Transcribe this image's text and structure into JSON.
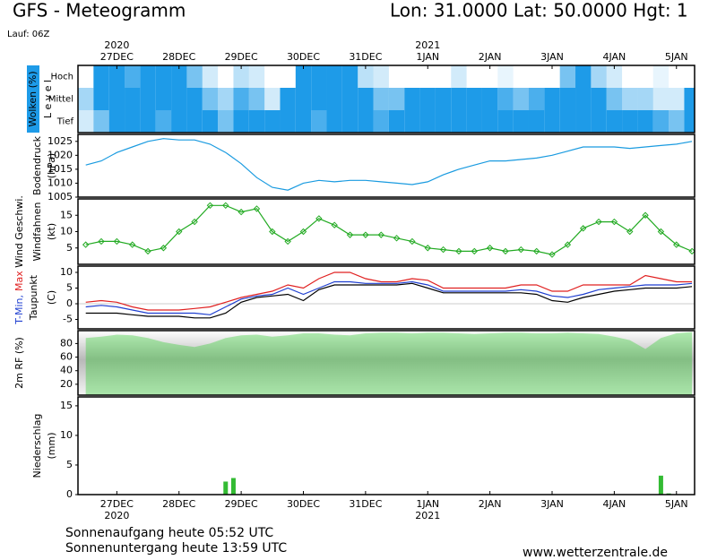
{
  "header": {
    "title": "GFS - Meteogramm",
    "location": "Lon: 31.0000 Lat: 50.0000 Hgt: 1",
    "run": "Lauf: 06Z"
  },
  "footer": {
    "sunrise": "Sonnenaufgang heute 05:52 UTC",
    "sunset": "Sonnenuntergang heute 13:59 UTC",
    "site": "www.wetterzentrale.de"
  },
  "chart_data": [
    {
      "type": "cloud",
      "ylabel": "Wolken (%)",
      "level_label": "L e v e l",
      "color": "#1e9be8",
      "xlim": [
        -15,
        223
      ],
      "xticks": [
        {
          "value": 0,
          "label": "27DEC"
        },
        {
          "value": 24,
          "label": "28DEC"
        },
        {
          "value": 48,
          "label": "29DEC"
        },
        {
          "value": 72,
          "label": "30DEC"
        },
        {
          "value": 96,
          "label": "31DEC"
        },
        {
          "value": 120,
          "label": "1JAN"
        },
        {
          "value": 144,
          "label": "2JAN"
        },
        {
          "value": 168,
          "label": "3JAN"
        },
        {
          "value": 192,
          "label": "4JAN"
        },
        {
          "value": 216,
          "label": "5JAN"
        }
      ],
      "year_labels": [
        {
          "value": 0,
          "label": "2020"
        },
        {
          "value": 120,
          "label": "2021"
        }
      ],
      "x": [
        -12,
        -6,
        0,
        6,
        12,
        18,
        24,
        30,
        36,
        42,
        48,
        54,
        60,
        66,
        72,
        78,
        84,
        90,
        96,
        102,
        108,
        114,
        120,
        126,
        132,
        138,
        144,
        150,
        156,
        162,
        168,
        174,
        180,
        186,
        192,
        198,
        204,
        210,
        216,
        222
      ],
      "series": [
        {
          "name": "Hoch",
          "values": [
            0,
            100,
            100,
            80,
            100,
            100,
            100,
            60,
            20,
            0,
            30,
            20,
            0,
            0,
            100,
            100,
            100,
            100,
            30,
            20,
            0,
            0,
            0,
            0,
            20,
            0,
            0,
            10,
            0,
            0,
            0,
            60,
            100,
            40,
            20,
            0,
            0,
            10,
            0,
            0
          ]
        },
        {
          "name": "Mittel",
          "values": [
            40,
            100,
            100,
            100,
            100,
            100,
            100,
            100,
            60,
            40,
            80,
            60,
            20,
            100,
            100,
            100,
            100,
            100,
            100,
            60,
            60,
            100,
            100,
            100,
            100,
            100,
            100,
            80,
            60,
            80,
            100,
            100,
            100,
            100,
            60,
            40,
            40,
            20,
            20,
            100
          ]
        },
        {
          "name": "Tief",
          "values": [
            20,
            60,
            100,
            100,
            100,
            80,
            100,
            100,
            100,
            60,
            100,
            100,
            100,
            100,
            100,
            80,
            100,
            100,
            100,
            80,
            100,
            100,
            100,
            100,
            100,
            100,
            100,
            100,
            100,
            100,
            100,
            100,
            100,
            100,
            100,
            100,
            100,
            80,
            60,
            100
          ]
        }
      ]
    },
    {
      "type": "line",
      "ylabel": [
        "Bodendruck",
        "(hPa)"
      ],
      "xlim": [
        -15,
        223
      ],
      "ylim": [
        1005,
        1027.5
      ],
      "yticks": [
        1005,
        1010,
        1015,
        1020,
        1025
      ],
      "x": [
        -12,
        -6,
        0,
        6,
        12,
        18,
        24,
        30,
        36,
        42,
        48,
        54,
        60,
        66,
        72,
        78,
        84,
        90,
        96,
        102,
        108,
        114,
        120,
        126,
        132,
        138,
        144,
        150,
        156,
        162,
        168,
        174,
        180,
        186,
        192,
        198,
        204,
        210,
        216,
        222
      ],
      "series": [
        {
          "color": "#1a9be0",
          "values": [
            1016.5,
            1018,
            1021,
            1023,
            1025,
            1026,
            1025.5,
            1025.5,
            1024,
            1021,
            1017,
            1012,
            1008.5,
            1007.5,
            1010,
            1011,
            1010.5,
            1011,
            1011,
            1010.5,
            1010,
            1009.5,
            1010.5,
            1013,
            1015,
            1016.5,
            1018,
            1018,
            1018.5,
            1019,
            1020,
            1021.5,
            1023,
            1023,
            1023,
            1022.5,
            1023,
            1023.5,
            1024,
            1025
          ]
        }
      ]
    },
    {
      "type": "line",
      "markers": true,
      "ylabel": [
        "Windfahnen",
        "(kt)"
      ],
      "xlim": [
        -15,
        223
      ],
      "ylim": [
        0,
        20
      ],
      "yticks": [
        5,
        10,
        15
      ],
      "x": [
        -12,
        -6,
        0,
        6,
        12,
        18,
        24,
        30,
        36,
        42,
        48,
        54,
        60,
        66,
        72,
        78,
        84,
        90,
        96,
        102,
        108,
        114,
        120,
        126,
        132,
        138,
        144,
        150,
        156,
        162,
        168,
        174,
        180,
        186,
        192,
        198,
        204,
        210,
        216,
        222
      ],
      "series": [
        {
          "name": "Wind Geschwi.",
          "color": "#22aa22",
          "values": [
            6,
            7,
            7,
            6,
            4,
            5,
            10,
            13,
            18,
            18,
            16,
            17,
            10,
            7,
            10,
            14,
            12,
            9,
            9,
            9,
            8,
            7,
            5,
            4.5,
            4,
            4,
            5,
            4,
            4.5,
            4,
            3,
            6,
            11,
            13,
            13,
            10,
            15,
            10,
            6,
            4
          ]
        }
      ]
    },
    {
      "type": "line",
      "ylabel": [
        "(C)"
      ],
      "xlim": [
        -15,
        223
      ],
      "ylim": [
        -8,
        12
      ],
      "yticks": [
        -5,
        0,
        5,
        10
      ],
      "x": [
        -12,
        -6,
        0,
        6,
        12,
        18,
        24,
        30,
        36,
        42,
        48,
        54,
        60,
        66,
        72,
        78,
        84,
        90,
        96,
        102,
        108,
        114,
        120,
        126,
        132,
        138,
        144,
        150,
        156,
        162,
        168,
        174,
        180,
        186,
        192,
        198,
        204,
        210,
        216,
        222
      ],
      "series": [
        {
          "name": "T-Min,",
          "color": "#1f3fd0",
          "values": [
            -1,
            -0.5,
            -1,
            -2,
            -3,
            -3,
            -3,
            -3,
            -3.5,
            -1,
            1.5,
            2.5,
            3,
            5,
            3,
            5,
            7,
            7,
            6.5,
            6.5,
            6.5,
            7,
            6,
            4,
            4,
            4,
            4,
            4,
            4.5,
            4,
            2.5,
            2,
            3,
            4.5,
            5,
            5.5,
            6,
            6,
            6,
            6.5
          ]
        },
        {
          "name": "Max",
          "color": "#e02020",
          "values": [
            0.5,
            1,
            0.5,
            -1,
            -2,
            -2,
            -2,
            -1.5,
            -1,
            0.5,
            2,
            3,
            4,
            6,
            5,
            8,
            10,
            10,
            8,
            7,
            7,
            8,
            7.5,
            5,
            5,
            5,
            5,
            5,
            6,
            6,
            4,
            4,
            6,
            6,
            6,
            6,
            9,
            8,
            7,
            7
          ]
        },
        {
          "name": "Taupunkt",
          "color": "#000000",
          "values": [
            -3,
            -3,
            -3,
            -3.5,
            -4,
            -4,
            -4,
            -4.5,
            -4.5,
            -3,
            0.5,
            2,
            2.5,
            3,
            1,
            4.5,
            6,
            6,
            6,
            6,
            6,
            6.5,
            5,
            3.5,
            3.5,
            3.5,
            3.5,
            3.5,
            3.5,
            3,
            1,
            0.5,
            2,
            3,
            4,
            4.5,
            5,
            5,
            5,
            5.5
          ]
        }
      ]
    },
    {
      "type": "area",
      "xlim": [
        -15,
        223
      ],
      "ylim": [
        4,
        99
      ],
      "yticks": [
        20,
        40,
        60,
        80
      ],
      "x": [
        -12,
        -6,
        0,
        6,
        12,
        18,
        24,
        30,
        36,
        42,
        48,
        54,
        60,
        66,
        72,
        78,
        84,
        90,
        96,
        102,
        108,
        114,
        120,
        126,
        132,
        138,
        144,
        150,
        156,
        162,
        168,
        174,
        180,
        186,
        192,
        198,
        204,
        210,
        216,
        222
      ],
      "series": [
        {
          "name": "2m RF (%)",
          "color": "#22cc22",
          "values": [
            88,
            90,
            93,
            92,
            88,
            82,
            78,
            75,
            80,
            88,
            92,
            93,
            90,
            92,
            95,
            95,
            93,
            92,
            95,
            96,
            96,
            95,
            96,
            96,
            95,
            94,
            95,
            96,
            96,
            95,
            95,
            96,
            95,
            94,
            90,
            85,
            72,
            88,
            95,
            97
          ]
        }
      ]
    },
    {
      "type": "bar",
      "ylabel": [
        "Niederschlag",
        "(mm)"
      ],
      "color": "#33bb33",
      "xlim": [
        -15,
        223
      ],
      "ylim": [
        0,
        16.5
      ],
      "yticks": [
        0,
        5,
        10,
        15
      ],
      "xticks": [
        {
          "value": 0,
          "label": "27DEC"
        },
        {
          "value": 24,
          "label": "28DEC"
        },
        {
          "value": 48,
          "label": "29DEC"
        },
        {
          "value": 72,
          "label": "30DEC"
        },
        {
          "value": 96,
          "label": "31DEC"
        },
        {
          "value": 120,
          "label": "1JAN"
        },
        {
          "value": 144,
          "label": "2JAN"
        },
        {
          "value": 168,
          "label": "3JAN"
        },
        {
          "value": 192,
          "label": "4JAN"
        },
        {
          "value": 216,
          "label": "5JAN"
        }
      ],
      "year_labels": [
        {
          "value": 0,
          "label": "2020"
        },
        {
          "value": 120,
          "label": "2021"
        }
      ],
      "x": [
        42,
        45,
        210,
        213
      ],
      "values": [
        2.2,
        2.8,
        3.2,
        0.2
      ]
    }
  ]
}
